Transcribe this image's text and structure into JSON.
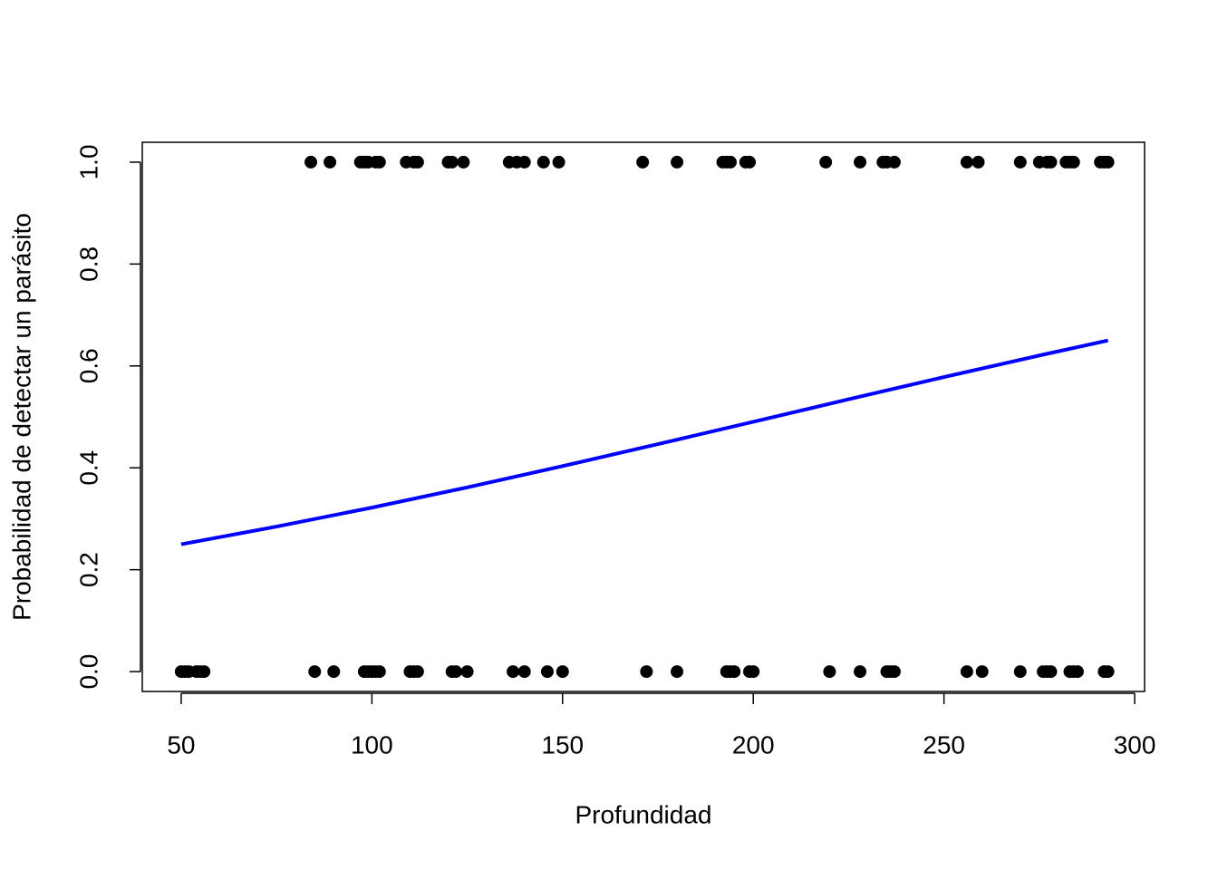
{
  "chart_data": {
    "type": "scatter",
    "x_label": "Profundidad",
    "y_label": "Probabilidad de detectar un parásito",
    "xlim": [
      39.8,
      302.6
    ],
    "ylim": [
      -0.039,
      1.039
    ],
    "xticks": [
      50,
      100,
      150,
      200,
      250,
      300
    ],
    "yticks": [
      {
        "value": 0,
        "label": "0.0"
      },
      {
        "value": 0.2,
        "label": "0.2"
      },
      {
        "value": 0.4,
        "label": "0.4"
      },
      {
        "value": 0.6,
        "label": "0.6"
      },
      {
        "value": 0.8,
        "label": "0.8"
      },
      {
        "value": 1,
        "label": "1.0"
      }
    ],
    "grid": false,
    "series": [
      {
        "type": "scatter",
        "color": "#000000",
        "x": [
          84,
          89,
          97,
          98,
          99,
          101,
          102,
          109,
          111,
          112,
          120,
          121,
          124,
          136,
          138,
          140,
          145,
          149,
          171,
          180,
          192,
          193,
          194,
          198,
          199,
          219,
          228,
          234,
          235,
          237,
          256,
          259,
          270,
          275,
          277,
          278,
          282,
          283,
          284,
          291,
          292,
          293,
          50,
          51,
          52,
          54,
          55,
          56,
          85,
          90,
          98,
          99,
          100,
          101,
          102,
          110,
          111,
          112,
          121,
          122,
          125,
          137,
          140,
          146,
          150,
          172,
          180,
          193,
          194,
          195,
          199,
          200,
          220,
          228,
          235,
          236,
          237,
          256,
          260,
          270,
          276,
          277,
          278,
          283,
          284,
          285,
          292,
          293
        ],
        "values": [
          1,
          1,
          1,
          1,
          1,
          1,
          1,
          1,
          1,
          1,
          1,
          1,
          1,
          1,
          1,
          1,
          1,
          1,
          1,
          1,
          1,
          1,
          1,
          1,
          1,
          1,
          1,
          1,
          1,
          1,
          1,
          1,
          1,
          1,
          1,
          1,
          1,
          1,
          1,
          1,
          1,
          1,
          0,
          0,
          0,
          0,
          0,
          0,
          0,
          0,
          0,
          0,
          0,
          0,
          0,
          0,
          0,
          0,
          0,
          0,
          0,
          0,
          0,
          0,
          0,
          0,
          0,
          0,
          0,
          0,
          0,
          0,
          0,
          0,
          0,
          0,
          0,
          0,
          0,
          0,
          0,
          0,
          0,
          0,
          0,
          0,
          0,
          0
        ]
      },
      {
        "type": "line",
        "color": "#0000ff",
        "x": [
          50,
          75,
          100,
          125,
          150,
          175,
          200,
          225,
          250,
          275,
          293
        ],
        "values": [
          0.25,
          0.2846,
          0.3219,
          0.3616,
          0.4034,
          0.4465,
          0.4904,
          0.5345,
          0.5781,
          0.6205,
          0.65
        ]
      }
    ]
  }
}
